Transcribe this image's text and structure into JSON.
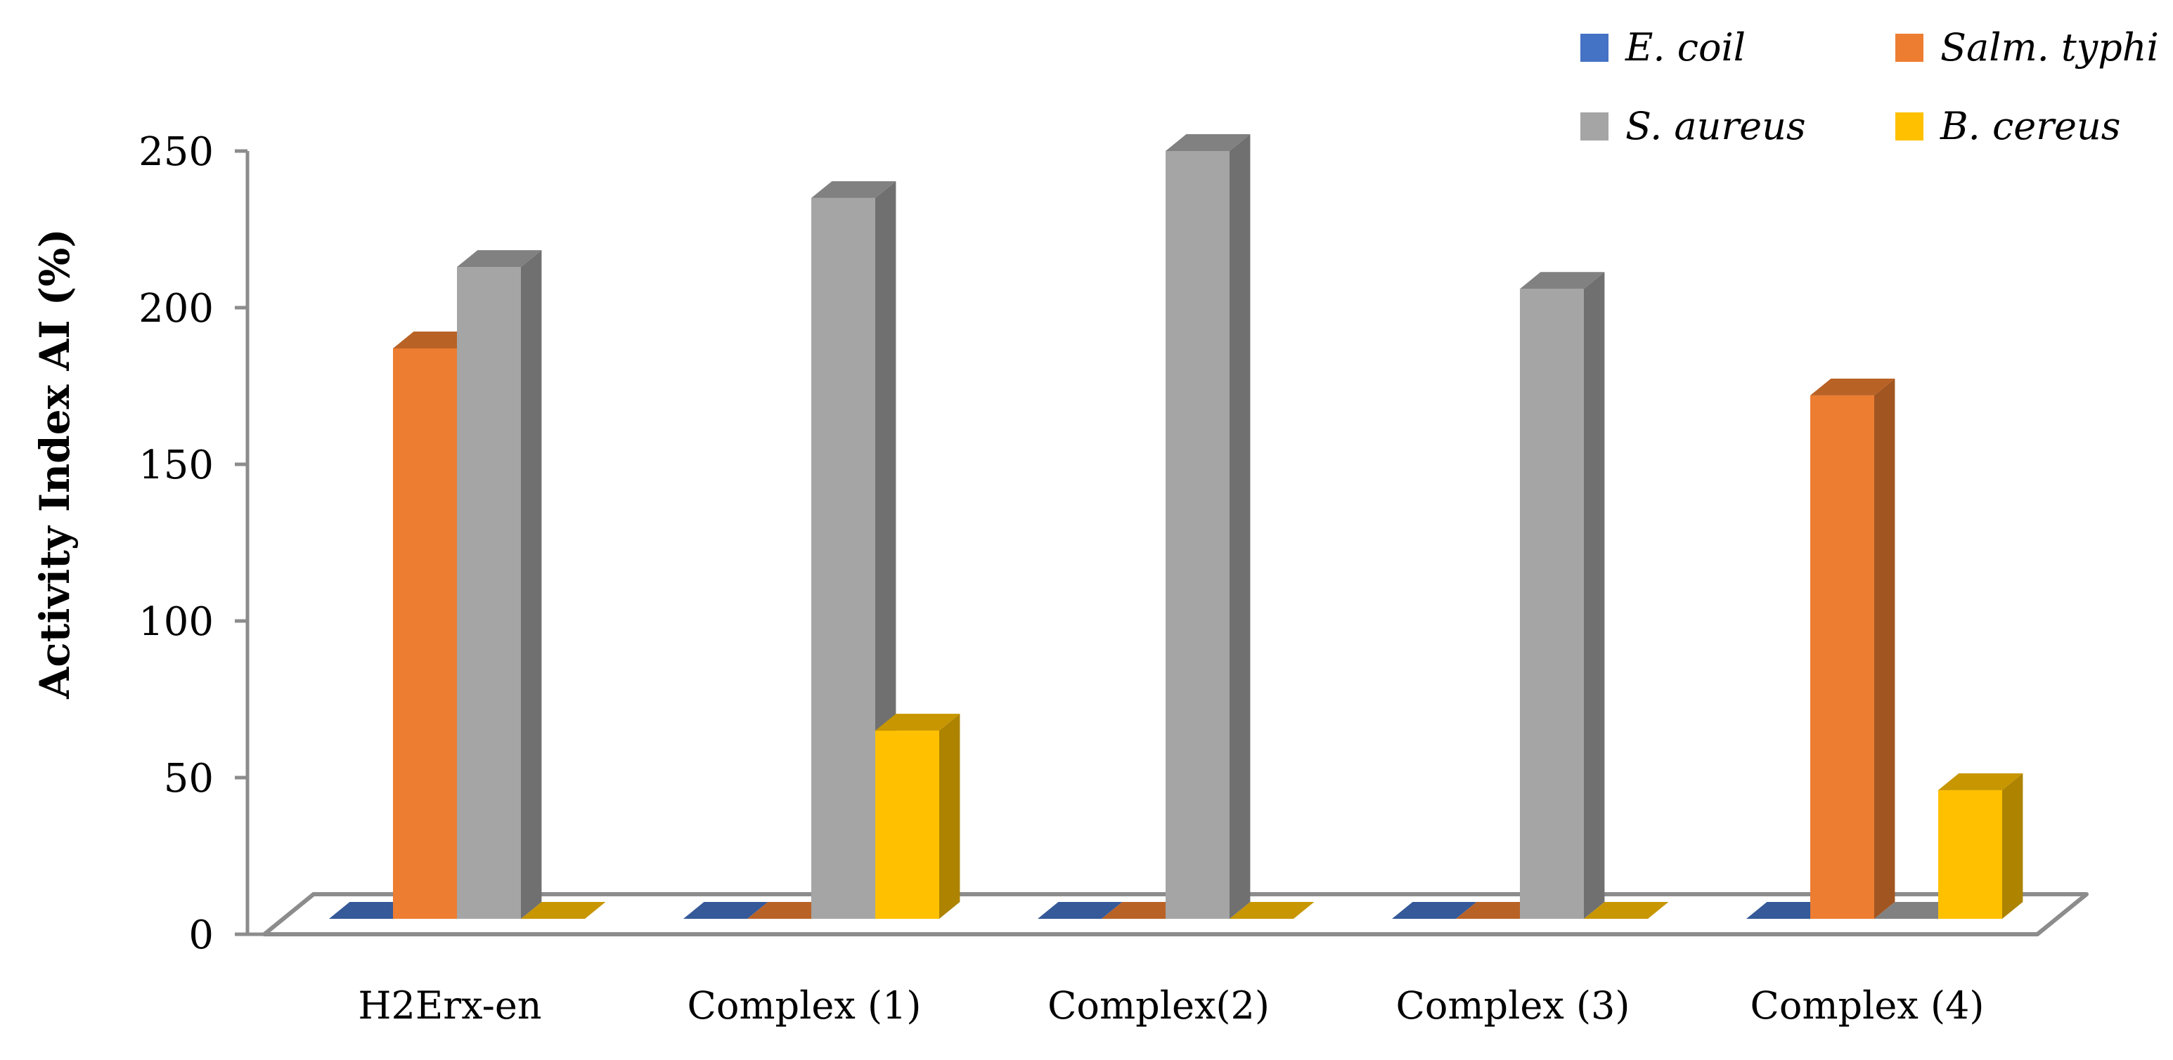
{
  "chart_data": {
    "type": "bar",
    "three_d": true,
    "title": "",
    "xlabel": "",
    "ylabel": "Activity Index AI (%)",
    "ylim": [
      0,
      250
    ],
    "yticks": [
      0,
      50,
      100,
      150,
      200,
      250
    ],
    "categories": [
      "H2Erx-en",
      "Complex (1)",
      "Complex(2)",
      "Complex (3)",
      "Complex (4)"
    ],
    "series": [
      {
        "name": "E. coil",
        "color": "#4472C4",
        "values": [
          0,
          0,
          0,
          0,
          0
        ]
      },
      {
        "name": "Salm. typhi",
        "color": "#ED7D31",
        "values": [
          187,
          0,
          0,
          0,
          172
        ]
      },
      {
        "name": "S. aureus",
        "color": "#A5A5A5",
        "values": [
          213,
          235,
          250,
          206,
          0
        ]
      },
      {
        "name": "B. cereus",
        "color": "#FFC000",
        "values": [
          0,
          65,
          0,
          0,
          46
        ]
      }
    ],
    "legend_position": "top-right",
    "grid": false
  }
}
